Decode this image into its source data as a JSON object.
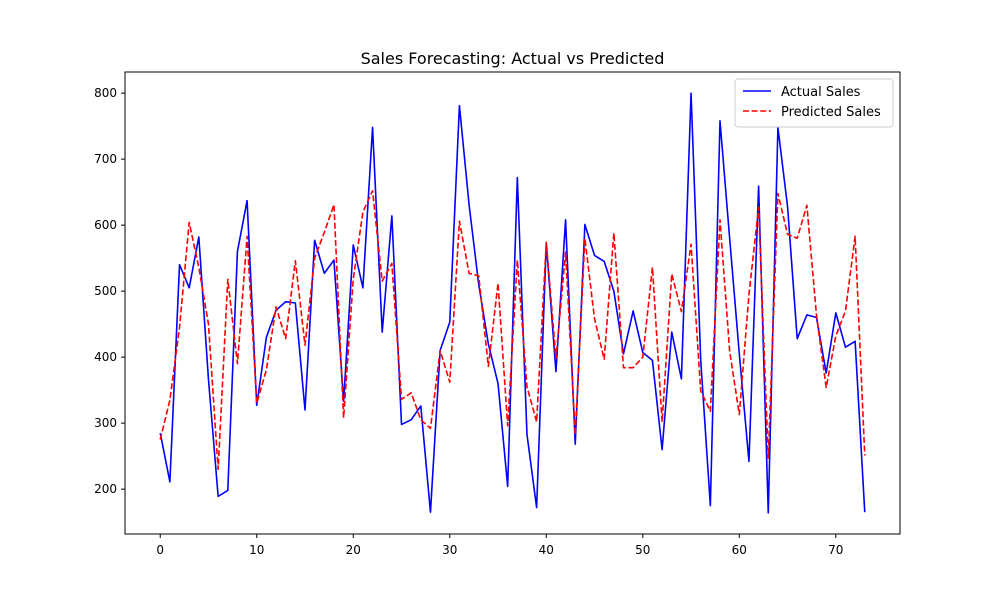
{
  "chart_data": {
    "type": "line",
    "title": "Sales Forecasting: Actual vs Predicted",
    "xlabel": "",
    "ylabel": "",
    "xlim": [
      -3.65,
      76.65
    ],
    "ylim": [
      132,
      832
    ],
    "x_ticks": [
      0,
      10,
      20,
      30,
      40,
      50,
      60,
      70
    ],
    "y_ticks": [
      200,
      300,
      400,
      500,
      600,
      700,
      800
    ],
    "grid": false,
    "legend_position": "top-right",
    "series": [
      {
        "name": "Actual Sales",
        "color": "#0000ff",
        "style": "solid",
        "values": [
          285,
          211,
          540,
          505,
          582,
          366,
          189,
          198,
          560,
          637,
          327,
          430,
          471,
          484,
          482,
          320,
          577,
          527,
          547,
          333,
          570,
          505,
          748,
          438,
          614,
          298,
          305,
          326,
          165,
          410,
          453,
          781,
          631,
          510,
          420,
          360,
          204,
          672,
          283,
          172,
          573,
          378,
          608,
          268,
          601,
          554,
          545,
          500,
          405,
          470,
          407,
          395,
          260,
          438,
          367,
          800,
          396,
          175,
          758,
          580,
          405,
          242,
          659,
          164,
          748,
          628,
          428,
          464,
          460,
          376,
          467,
          415,
          424,
          165
        ]
      },
      {
        "name": "Predicted Sales",
        "color": "#ff0000",
        "style": "dashed",
        "values": [
          275,
          335,
          445,
          604,
          536,
          450,
          230,
          518,
          390,
          583,
          330,
          381,
          476,
          428,
          546,
          418,
          550,
          589,
          631,
          308,
          518,
          620,
          652,
          515,
          542,
          336,
          346,
          305,
          292,
          410,
          362,
          606,
          527,
          523,
          386,
          512,
          296,
          547,
          355,
          302,
          574,
          398,
          559,
          282,
          580,
          458,
          397,
          588,
          384,
          384,
          400,
          536,
          302,
          526,
          469,
          571,
          349,
          318,
          608,
          409,
          313,
          495,
          627,
          247,
          648,
          586,
          580,
          630,
          463,
          354,
          432,
          470,
          583,
          251
        ]
      }
    ]
  }
}
